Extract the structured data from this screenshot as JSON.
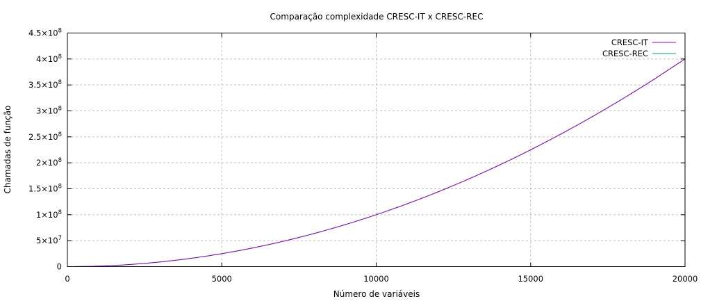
{
  "chart_data": {
    "type": "line",
    "title": "Comparação complexidade CRESC-IT x CRESC-REC",
    "xlabel": "Número de variáveis",
    "ylabel": "Chamadas de função",
    "xlim": [
      0,
      20000
    ],
    "ylim": [
      0,
      450000000
    ],
    "grid": true,
    "legend_position": "top-right",
    "x_ticks": [
      {
        "label": "0",
        "value": 0
      },
      {
        "label": "5000",
        "value": 5000
      },
      {
        "label": "10000",
        "value": 10000
      },
      {
        "label": "15000",
        "value": 15000
      },
      {
        "label": "20000",
        "value": 20000
      }
    ],
    "y_ticks": [
      {
        "mant": "0",
        "exp": "",
        "value": 0
      },
      {
        "mant": "5×10",
        "exp": "7",
        "value": 50000000
      },
      {
        "mant": "1×10",
        "exp": "8",
        "value": 100000000
      },
      {
        "mant": "1.5×10",
        "exp": "8",
        "value": 150000000
      },
      {
        "mant": "2×10",
        "exp": "8",
        "value": 200000000
      },
      {
        "mant": "2.5×10",
        "exp": "8",
        "value": 250000000
      },
      {
        "mant": "3×10",
        "exp": "8",
        "value": 300000000
      },
      {
        "mant": "3.5×10",
        "exp": "8",
        "value": 350000000
      },
      {
        "mant": "4×10",
        "exp": "8",
        "value": 400000000
      },
      {
        "mant": "4.5×10",
        "exp": "8",
        "value": 450000000
      }
    ],
    "series": [
      {
        "name": "CRESC-IT",
        "color": "#9400d3",
        "x": [
          0,
          1000,
          2000,
          3000,
          4000,
          5000,
          6000,
          7000,
          8000,
          9000,
          10000,
          11000,
          12000,
          13000,
          14000,
          15000,
          16000,
          17000,
          18000,
          19000,
          20000
        ],
        "y": [
          0,
          1000000,
          4000000,
          9000000,
          16000000,
          25000000,
          36000000,
          49000000,
          64000000,
          81000000,
          100000000,
          121000000,
          144000000,
          169000000,
          196000000,
          225000000,
          256000000,
          289000000,
          324000000,
          361000000,
          400000000
        ]
      },
      {
        "name": "CRESC-REC",
        "color": "#009e73",
        "x": [
          0,
          1000,
          2000,
          3000,
          4000,
          5000,
          6000,
          7000,
          8000,
          9000,
          10000,
          11000,
          12000,
          13000,
          14000,
          15000,
          16000,
          17000,
          18000,
          19000,
          20000
        ],
        "y": [
          0,
          1000000,
          4000000,
          9000000,
          16000000,
          25000000,
          36000000,
          49000000,
          64000000,
          81000000,
          100000000,
          121000000,
          144000000,
          169000000,
          196000000,
          225000000,
          256000000,
          289000000,
          324000000,
          361000000,
          400000000
        ]
      }
    ]
  }
}
